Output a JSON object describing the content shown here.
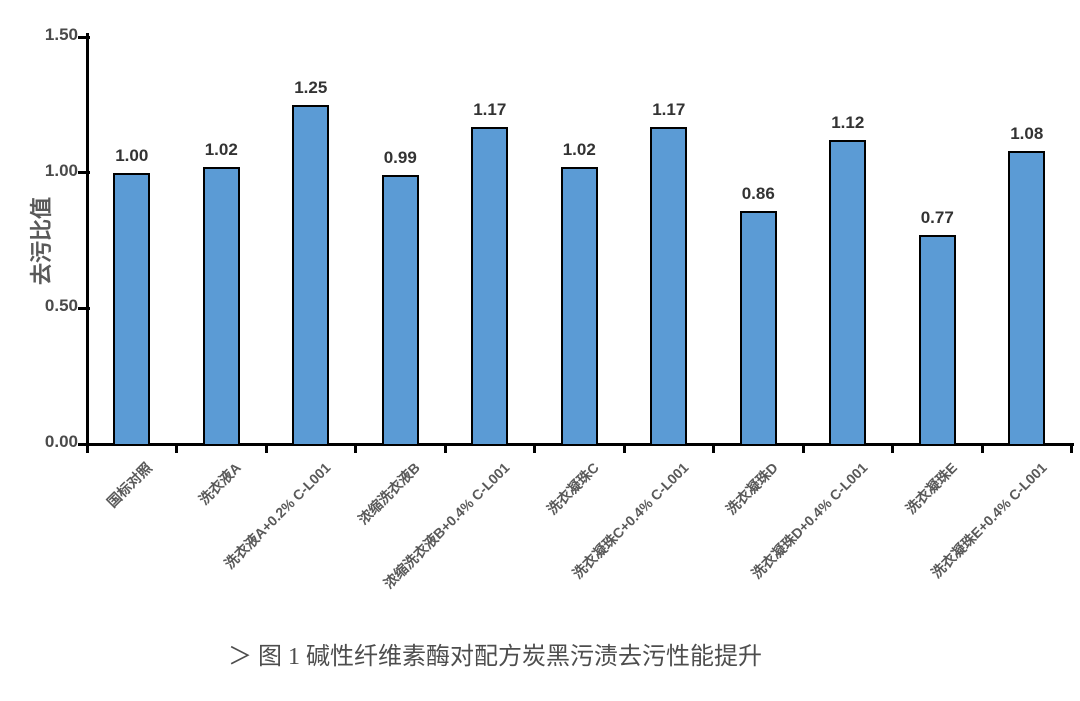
{
  "page": {
    "background": "#ffffff"
  },
  "colors": {
    "bar_fill": "#5B9BD5",
    "bar_border": "#000000",
    "axis": "#000000",
    "ytick_label": "#4a4a4a",
    "value_label": "#333333",
    "category_label": "#595959",
    "ylabel_color": "#595959",
    "caption_color": "#4d4d4d"
  },
  "chart_data": {
    "type": "bar",
    "title": "",
    "xlabel": "",
    "ylabel": "去污比值",
    "ylim": [
      0,
      1.5
    ],
    "yticks": [
      0,
      0.5,
      1,
      1.5
    ],
    "ytick_labels": [
      "0.00",
      "0.50",
      "1.00",
      "1.50"
    ],
    "grid": false,
    "legend": null,
    "categories": [
      "国标对照",
      "洗衣液A",
      "洗衣液A+0.2% C-L001",
      "浓缩洗衣液B",
      "浓缩洗衣液B+0.4% C-L001",
      "洗衣凝珠C",
      "洗衣凝珠C+0.4% C-L001",
      "洗衣凝珠D",
      "洗衣凝珠D+0.4% C-L001",
      "洗衣凝珠E",
      "洗衣凝珠E+0.4% C-L001"
    ],
    "values": [
      1.0,
      1.02,
      1.25,
      0.99,
      1.17,
      1.02,
      1.17,
      0.86,
      1.12,
      0.77,
      1.08
    ],
    "value_labels": [
      "1.00",
      "1.02",
      "1.25",
      "0.99",
      "1.17",
      "1.02",
      "1.17",
      "0.86",
      "1.12",
      "0.77",
      "1.08"
    ]
  },
  "caption": {
    "text": "＞ 图 1 碱性纤维素酶对配方炭黑污渍去污性能提升"
  }
}
